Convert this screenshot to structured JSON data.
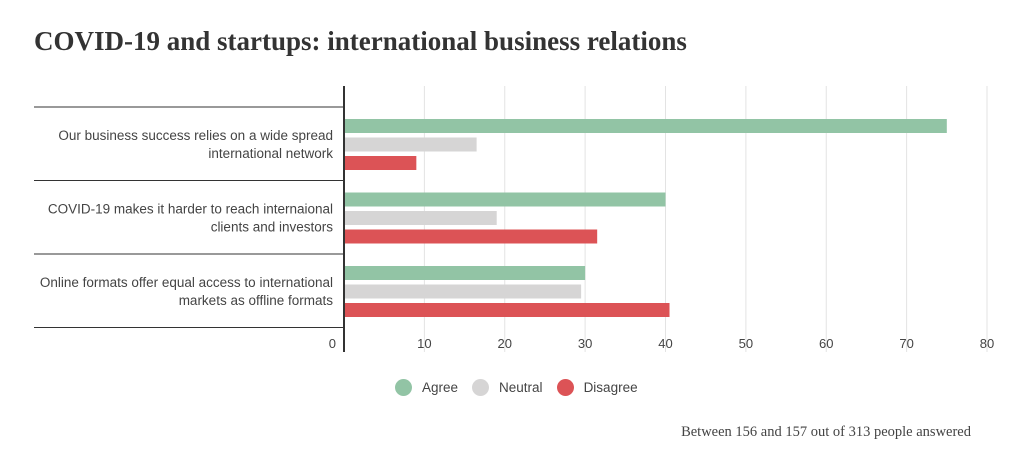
{
  "chart_data": {
    "type": "bar",
    "orientation": "horizontal",
    "title": "COVID-19 and startups: international business relations",
    "categories": [
      [
        "Our business success relies on a wide spread",
        "international network"
      ],
      [
        "COVID-19 makes it harder to reach internaional",
        "clients and investors"
      ],
      [
        "Online formats offer equal access to international",
        "markets as offline formats"
      ]
    ],
    "series": [
      {
        "name": "Agree",
        "color": "#92c4a5",
        "values": [
          75,
          40,
          30
        ]
      },
      {
        "name": "Neutral",
        "color": "#d6d5d5",
        "values": [
          16.5,
          19,
          29.5
        ]
      },
      {
        "name": "Disagree",
        "color": "#dc5356",
        "values": [
          9,
          31.5,
          40.5
        ]
      }
    ],
    "xlim": [
      0,
      80
    ],
    "xticks": [
      0,
      10,
      20,
      30,
      40,
      50,
      60,
      70,
      80
    ],
    "grid": true,
    "legend_position": "bottom"
  },
  "footnote": "Between 156 and 157 out of 313 people answered"
}
